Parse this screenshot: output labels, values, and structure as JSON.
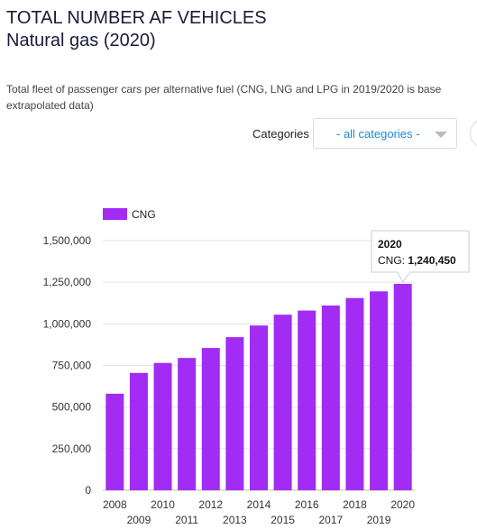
{
  "header": {
    "title": "TOTAL NUMBER AF VEHICLES Natural gas (2020)",
    "subtitle": "Total fleet of passenger cars per alternative fuel (CNG, LNG and LPG in 2019/2020 is base extrapolated data)"
  },
  "filter": {
    "label": "Categories",
    "selected": "- all categories -"
  },
  "tooltip": {
    "year": "2020",
    "series_label": "CNG: ",
    "value_text": "1,240,450"
  },
  "colors": {
    "bar": "#a22cf3",
    "grid": "#e3e3e3",
    "axis": "#bdbdbd"
  },
  "chart_data": {
    "type": "bar",
    "title": "",
    "xlabel": "",
    "ylabel": "",
    "categories": [
      "2008",
      "2009",
      "2010",
      "2011",
      "2012",
      "2013",
      "2014",
      "2015",
      "2016",
      "2017",
      "2018",
      "2019",
      "2020"
    ],
    "series": [
      {
        "name": "CNG",
        "values": [
          580000,
          705000,
          765000,
          795000,
          855000,
          920000,
          990000,
          1055000,
          1080000,
          1110000,
          1155000,
          1195000,
          1240450
        ]
      }
    ],
    "ylim": [
      0,
      1500000
    ],
    "yticks": [
      0,
      250000,
      500000,
      750000,
      1000000,
      1250000,
      1500000
    ],
    "ytick_labels": [
      "0",
      "250,000",
      "500,000",
      "750,000",
      "1,000,000",
      "1,250,000",
      "1,500,000"
    ],
    "grid": true,
    "legend": "top-left"
  }
}
